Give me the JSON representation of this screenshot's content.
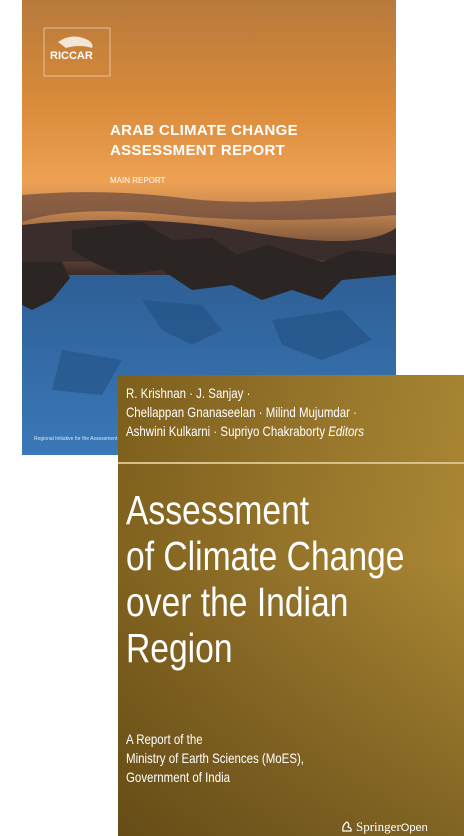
{
  "covers": [
    {
      "logo": "RICCAR",
      "title": [
        "ARAB CLIMATE CHANGE",
        "ASSESSMENT REPORT"
      ],
      "subtitle": "MAIN REPORT",
      "footer": "Regional Initiative for the Assessment"
    },
    {
      "authors": [
        "R. Krishnan · J. Sanjay ·",
        "Chellappan Gnanaseelan · Milind Mujumdar ·",
        "Ashwini Kulkarni · Supriyo Chakraborty"
      ],
      "editors_label": "Editors",
      "title": [
        "Assessment",
        "of Climate Change",
        "over the Indian",
        "Region"
      ],
      "subtitle": [
        "A Report of the",
        "Ministry of Earth Sciences (MoES),",
        "Government of India"
      ],
      "publisher": "Springer",
      "publisher_suffix": "Open"
    }
  ]
}
